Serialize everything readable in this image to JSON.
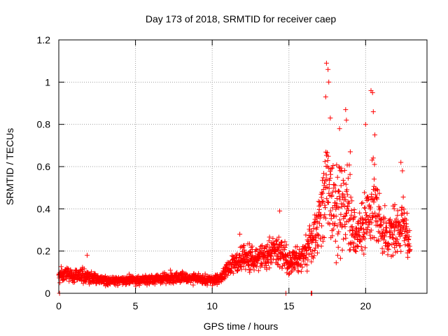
{
  "chart_data": {
    "type": "scatter",
    "title": "Day 173 of 2018, SRMTID for receiver caep",
    "xlabel": "GPS time / hours",
    "ylabel": "SRMTID / TECUs",
    "xlim": [
      0,
      24
    ],
    "ylim": [
      0,
      1.2
    ],
    "x_ticks": [
      0,
      5,
      10,
      15,
      20
    ],
    "x_tick_labels": [
      "0",
      "5",
      "10",
      "15",
      "20"
    ],
    "y_ticks": [
      0,
      0.2,
      0.4,
      0.6,
      0.8,
      1.0,
      1.2
    ],
    "y_tick_labels": [
      "0",
      "0.2",
      "0.4",
      "0.6",
      "0.8",
      "1",
      "1.2"
    ],
    "grid": true,
    "marker": "+",
    "color": "#ff0000",
    "trend": [
      {
        "x": 0.0,
        "base": 0.085,
        "spread": 0.025
      },
      {
        "x": 0.5,
        "base": 0.095,
        "spread": 0.03
      },
      {
        "x": 1.0,
        "base": 0.08,
        "spread": 0.025
      },
      {
        "x": 1.8,
        "base": 0.085,
        "spread": 0.035
      },
      {
        "x": 2.5,
        "base": 0.065,
        "spread": 0.02
      },
      {
        "x": 3.0,
        "base": 0.06,
        "spread": 0.02
      },
      {
        "x": 4.0,
        "base": 0.06,
        "spread": 0.02
      },
      {
        "x": 5.0,
        "base": 0.06,
        "spread": 0.02
      },
      {
        "x": 6.0,
        "base": 0.065,
        "spread": 0.02
      },
      {
        "x": 7.0,
        "base": 0.075,
        "spread": 0.025
      },
      {
        "x": 8.0,
        "base": 0.075,
        "spread": 0.025
      },
      {
        "x": 9.0,
        "base": 0.07,
        "spread": 0.02
      },
      {
        "x": 10.0,
        "base": 0.06,
        "spread": 0.02
      },
      {
        "x": 10.5,
        "base": 0.07,
        "spread": 0.025
      },
      {
        "x": 11.0,
        "base": 0.12,
        "spread": 0.04
      },
      {
        "x": 12.0,
        "base": 0.17,
        "spread": 0.05
      },
      {
        "x": 13.0,
        "base": 0.16,
        "spread": 0.05
      },
      {
        "x": 14.0,
        "base": 0.2,
        "spread": 0.06
      },
      {
        "x": 14.5,
        "base": 0.2,
        "spread": 0.06
      },
      {
        "x": 15.0,
        "base": 0.15,
        "spread": 0.05
      },
      {
        "x": 16.0,
        "base": 0.18,
        "spread": 0.07
      },
      {
        "x": 16.8,
        "base": 0.3,
        "spread": 0.1
      },
      {
        "x": 17.5,
        "base": 0.5,
        "spread": 0.25
      },
      {
        "x": 18.0,
        "base": 0.4,
        "spread": 0.2
      },
      {
        "x": 18.7,
        "base": 0.45,
        "spread": 0.2
      },
      {
        "x": 19.3,
        "base": 0.28,
        "spread": 0.08
      },
      {
        "x": 20.0,
        "base": 0.35,
        "spread": 0.15
      },
      {
        "x": 20.5,
        "base": 0.45,
        "spread": 0.2
      },
      {
        "x": 21.0,
        "base": 0.3,
        "spread": 0.1
      },
      {
        "x": 21.5,
        "base": 0.28,
        "spread": 0.1
      },
      {
        "x": 22.0,
        "base": 0.3,
        "spread": 0.12
      },
      {
        "x": 22.5,
        "base": 0.35,
        "spread": 0.1
      },
      {
        "x": 22.9,
        "base": 0.2,
        "spread": 0.08
      }
    ],
    "peaks": [
      {
        "x": 1.85,
        "y": 0.18
      },
      {
        "x": 11.8,
        "y": 0.28
      },
      {
        "x": 14.4,
        "y": 0.39
      },
      {
        "x": 17.45,
        "y": 1.09
      },
      {
        "x": 17.55,
        "y": 1.06
      },
      {
        "x": 17.6,
        "y": 1.0
      },
      {
        "x": 17.4,
        "y": 0.93
      },
      {
        "x": 17.7,
        "y": 0.83
      },
      {
        "x": 18.3,
        "y": 0.78
      },
      {
        "x": 18.7,
        "y": 0.87
      },
      {
        "x": 18.75,
        "y": 0.82
      },
      {
        "x": 19.0,
        "y": 0.67
      },
      {
        "x": 20.35,
        "y": 0.96
      },
      {
        "x": 20.45,
        "y": 0.95
      },
      {
        "x": 20.5,
        "y": 0.86
      },
      {
        "x": 20.6,
        "y": 0.75
      },
      {
        "x": 20.0,
        "y": 0.8
      },
      {
        "x": 22.3,
        "y": 0.62
      },
      {
        "x": 22.4,
        "y": 0.58
      }
    ],
    "zero_points": [
      {
        "x": 0.05,
        "y": 0.0
      },
      {
        "x": 14.8,
        "y": 0.0
      },
      {
        "x": 16.45,
        "y": 0.0
      },
      {
        "x": 16.5,
        "y": 0.0
      }
    ]
  }
}
